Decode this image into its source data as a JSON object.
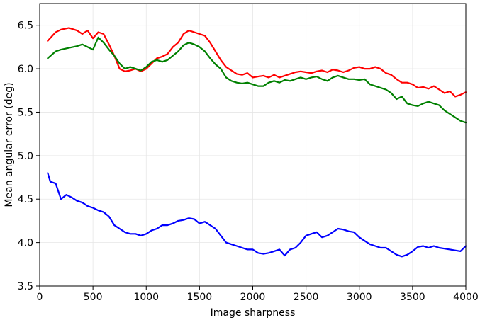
{
  "chart_data": {
    "type": "line",
    "title": "",
    "xlabel": "Image sharpness",
    "ylabel": "Mean angular error (deg)",
    "xlim": [
      0,
      4000
    ],
    "ylim": [
      3.5,
      6.75
    ],
    "grid": true,
    "legend": "none",
    "x_ticks": [
      "0",
      "500",
      "1000",
      "1500",
      "2000",
      "2500",
      "3000",
      "3500",
      "4000"
    ],
    "y_ticks": [
      "3.5",
      "4.0",
      "4.5",
      "5.0",
      "5.5",
      "6.0",
      "6.5"
    ],
    "series": [
      {
        "color": "#ff0000",
        "x": [
          75,
          150,
          200,
          275,
          350,
          400,
          450,
          500,
          550,
          600,
          650,
          700,
          750,
          800,
          850,
          900,
          950,
          1000,
          1050,
          1100,
          1150,
          1200,
          1250,
          1300,
          1350,
          1400,
          1450,
          1500,
          1550,
          1600,
          1650,
          1700,
          1750,
          1800,
          1850,
          1900,
          1950,
          2000,
          2050,
          2100,
          2150,
          2200,
          2250,
          2300,
          2350,
          2400,
          2450,
          2500,
          2550,
          2600,
          2650,
          2700,
          2750,
          2800,
          2850,
          2900,
          2950,
          3000,
          3050,
          3100,
          3150,
          3200,
          3250,
          3300,
          3350,
          3400,
          3450,
          3500,
          3550,
          3600,
          3650,
          3700,
          3750,
          3800,
          3850,
          3900,
          3950,
          4000
        ],
        "values": [
          6.32,
          6.42,
          6.45,
          6.47,
          6.44,
          6.4,
          6.44,
          6.35,
          6.42,
          6.4,
          6.28,
          6.15,
          6.0,
          5.97,
          5.98,
          6.0,
          5.97,
          6.0,
          6.06,
          6.12,
          6.14,
          6.17,
          6.25,
          6.3,
          6.4,
          6.44,
          6.42,
          6.4,
          6.38,
          6.3,
          6.2,
          6.1,
          6.02,
          5.98,
          5.94,
          5.93,
          5.95,
          5.9,
          5.91,
          5.92,
          5.9,
          5.93,
          5.9,
          5.92,
          5.94,
          5.96,
          5.97,
          5.96,
          5.95,
          5.97,
          5.98,
          5.96,
          5.99,
          5.98,
          5.96,
          5.98,
          6.01,
          6.02,
          6.0,
          6.0,
          6.02,
          6.0,
          5.95,
          5.93,
          5.88,
          5.84,
          5.84,
          5.82,
          5.78,
          5.79,
          5.77,
          5.8,
          5.76,
          5.72,
          5.74,
          5.68,
          5.7,
          5.73
        ]
      },
      {
        "color": "#008000",
        "x": [
          75,
          150,
          200,
          275,
          350,
          400,
          450,
          500,
          550,
          600,
          650,
          700,
          750,
          800,
          850,
          900,
          950,
          1000,
          1050,
          1100,
          1150,
          1200,
          1250,
          1300,
          1350,
          1400,
          1450,
          1500,
          1550,
          1600,
          1650,
          1700,
          1750,
          1800,
          1850,
          1900,
          1950,
          2000,
          2050,
          2100,
          2150,
          2200,
          2250,
          2300,
          2350,
          2400,
          2450,
          2500,
          2550,
          2600,
          2650,
          2700,
          2750,
          2800,
          2850,
          2900,
          2950,
          3000,
          3050,
          3100,
          3150,
          3200,
          3250,
          3300,
          3350,
          3400,
          3450,
          3500,
          3550,
          3600,
          3650,
          3700,
          3750,
          3800,
          3850,
          3900,
          3950,
          4000
        ],
        "values": [
          6.12,
          6.2,
          6.22,
          6.24,
          6.26,
          6.28,
          6.25,
          6.22,
          6.36,
          6.3,
          6.22,
          6.15,
          6.06,
          6.0,
          6.02,
          6.0,
          5.98,
          6.02,
          6.08,
          6.1,
          6.08,
          6.1,
          6.15,
          6.2,
          6.27,
          6.3,
          6.28,
          6.25,
          6.2,
          6.12,
          6.05,
          6.0,
          5.9,
          5.86,
          5.84,
          5.83,
          5.84,
          5.82,
          5.8,
          5.8,
          5.84,
          5.86,
          5.84,
          5.87,
          5.86,
          5.88,
          5.9,
          5.88,
          5.9,
          5.91,
          5.88,
          5.86,
          5.9,
          5.92,
          5.9,
          5.88,
          5.88,
          5.87,
          5.88,
          5.82,
          5.8,
          5.78,
          5.76,
          5.72,
          5.65,
          5.68,
          5.6,
          5.58,
          5.57,
          5.6,
          5.62,
          5.6,
          5.58,
          5.52,
          5.48,
          5.44,
          5.4,
          5.38
        ]
      },
      {
        "color": "#0000ff",
        "x": [
          75,
          100,
          150,
          200,
          250,
          300,
          350,
          400,
          450,
          500,
          550,
          600,
          650,
          700,
          750,
          800,
          850,
          900,
          950,
          1000,
          1050,
          1100,
          1150,
          1200,
          1250,
          1300,
          1350,
          1400,
          1450,
          1500,
          1550,
          1600,
          1650,
          1700,
          1750,
          1800,
          1850,
          1900,
          1950,
          2000,
          2050,
          2100,
          2150,
          2200,
          2250,
          2300,
          2350,
          2400,
          2450,
          2500,
          2550,
          2600,
          2650,
          2700,
          2750,
          2800,
          2850,
          2900,
          2950,
          3000,
          3050,
          3100,
          3150,
          3200,
          3250,
          3300,
          3350,
          3400,
          3450,
          3500,
          3550,
          3600,
          3650,
          3700,
          3750,
          3800,
          3850,
          3900,
          3950,
          4000
        ],
        "values": [
          4.8,
          4.7,
          4.68,
          4.5,
          4.55,
          4.52,
          4.48,
          4.46,
          4.42,
          4.4,
          4.37,
          4.35,
          4.3,
          4.2,
          4.16,
          4.12,
          4.1,
          4.1,
          4.08,
          4.1,
          4.14,
          4.16,
          4.2,
          4.2,
          4.22,
          4.25,
          4.26,
          4.28,
          4.27,
          4.22,
          4.24,
          4.2,
          4.16,
          4.08,
          4.0,
          3.98,
          3.96,
          3.94,
          3.92,
          3.92,
          3.88,
          3.87,
          3.88,
          3.9,
          3.92,
          3.85,
          3.92,
          3.94,
          4.0,
          4.08,
          4.1,
          4.12,
          4.06,
          4.08,
          4.12,
          4.16,
          4.15,
          4.13,
          4.12,
          4.06,
          4.02,
          3.98,
          3.96,
          3.94,
          3.94,
          3.9,
          3.86,
          3.84,
          3.86,
          3.9,
          3.95,
          3.96,
          3.94,
          3.96,
          3.94,
          3.93,
          3.92,
          3.91,
          3.9,
          3.96
        ]
      }
    ]
  }
}
